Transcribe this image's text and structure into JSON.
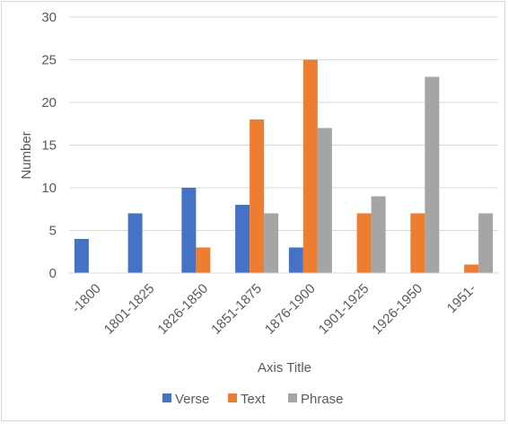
{
  "chart_data": {
    "type": "bar",
    "title": "",
    "xlabel": "Axis Title",
    "ylabel": "Number",
    "ylim": [
      0,
      30
    ],
    "yticks": [
      0,
      5,
      10,
      15,
      20,
      25,
      30
    ],
    "grid": true,
    "legend_position": "bottom",
    "categories": [
      "-1800",
      "1801-1825",
      "1826-1850",
      "1851-1875",
      "1876-1900",
      "1901-1925",
      "1926-1950",
      "1951-"
    ],
    "series": [
      {
        "name": "Verse",
        "color": "#4472C4",
        "values": [
          4,
          7,
          10,
          8,
          3,
          0,
          0,
          0
        ]
      },
      {
        "name": "Text",
        "color": "#ED7D31",
        "values": [
          0,
          0,
          3,
          18,
          25,
          7,
          7,
          1
        ]
      },
      {
        "name": "Phrase",
        "color": "#A5A5A5",
        "values": [
          0,
          0,
          0,
          7,
          17,
          9,
          23,
          7
        ]
      }
    ]
  }
}
